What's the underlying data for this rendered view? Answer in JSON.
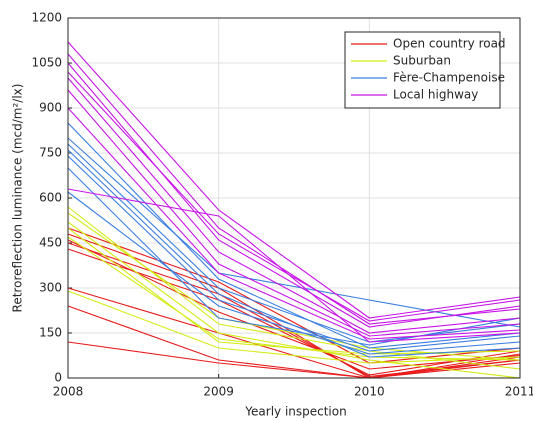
{
  "chart_data": {
    "type": "line",
    "x_label": "Yearly inspection",
    "y_label": "Retroreflection luminance (mcd/m²/lx)",
    "x": [
      2008,
      2009,
      2010,
      2011
    ],
    "xlim": [
      2008,
      2011
    ],
    "xticks": [
      2008,
      2009,
      2010,
      2011
    ],
    "ylim": [
      0,
      1200
    ],
    "yticks": [
      0,
      150,
      300,
      450,
      600,
      750,
      900,
      1050,
      1200
    ],
    "grid": true,
    "legend": "top-right",
    "series": [
      {
        "name": "Open country road",
        "color": "#e81c1c",
        "lines": [
          [
            480,
            300,
            0,
            80
          ],
          [
            450,
            280,
            5,
            60
          ],
          [
            300,
            150,
            0,
            70
          ],
          [
            120,
            50,
            0,
            60
          ],
          [
            430,
            260,
            10,
            90
          ],
          [
            500,
            320,
            50,
            100
          ],
          [
            240,
            60,
            0,
            50
          ],
          [
            460,
            220,
            30,
            75
          ]
        ]
      },
      {
        "name": "Suburban",
        "color": "#d2ec14",
        "lines": [
          [
            570,
            180,
            90,
            30
          ],
          [
            520,
            150,
            60,
            0
          ],
          [
            470,
            130,
            70,
            60
          ],
          [
            290,
            100,
            50,
            70
          ],
          [
            500,
            120,
            80,
            90
          ],
          [
            550,
            200,
            100,
            60
          ]
        ]
      },
      {
        "name": "Fère-Champenoise",
        "color": "#3a7ee0",
        "lines": [
          [
            850,
            330,
            100,
            150
          ],
          [
            780,
            300,
            120,
            180
          ],
          [
            740,
            260,
            90,
            140
          ],
          [
            700,
            200,
            110,
            200
          ],
          [
            620,
            240,
            80,
            120
          ],
          [
            800,
            350,
            260,
            170
          ],
          [
            760,
            280,
            70,
            100
          ]
        ]
      },
      {
        "name": "Local highway",
        "color": "#c814e8",
        "lines": [
          [
            1120,
            560,
            200,
            270
          ],
          [
            1080,
            500,
            180,
            230
          ],
          [
            1050,
            460,
            170,
            240
          ],
          [
            1000,
            420,
            150,
            200
          ],
          [
            960,
            380,
            140,
            180
          ],
          [
            900,
            350,
            130,
            160
          ],
          [
            630,
            540,
            120,
            150
          ],
          [
            1020,
            480,
            190,
            260
          ]
        ]
      }
    ]
  }
}
